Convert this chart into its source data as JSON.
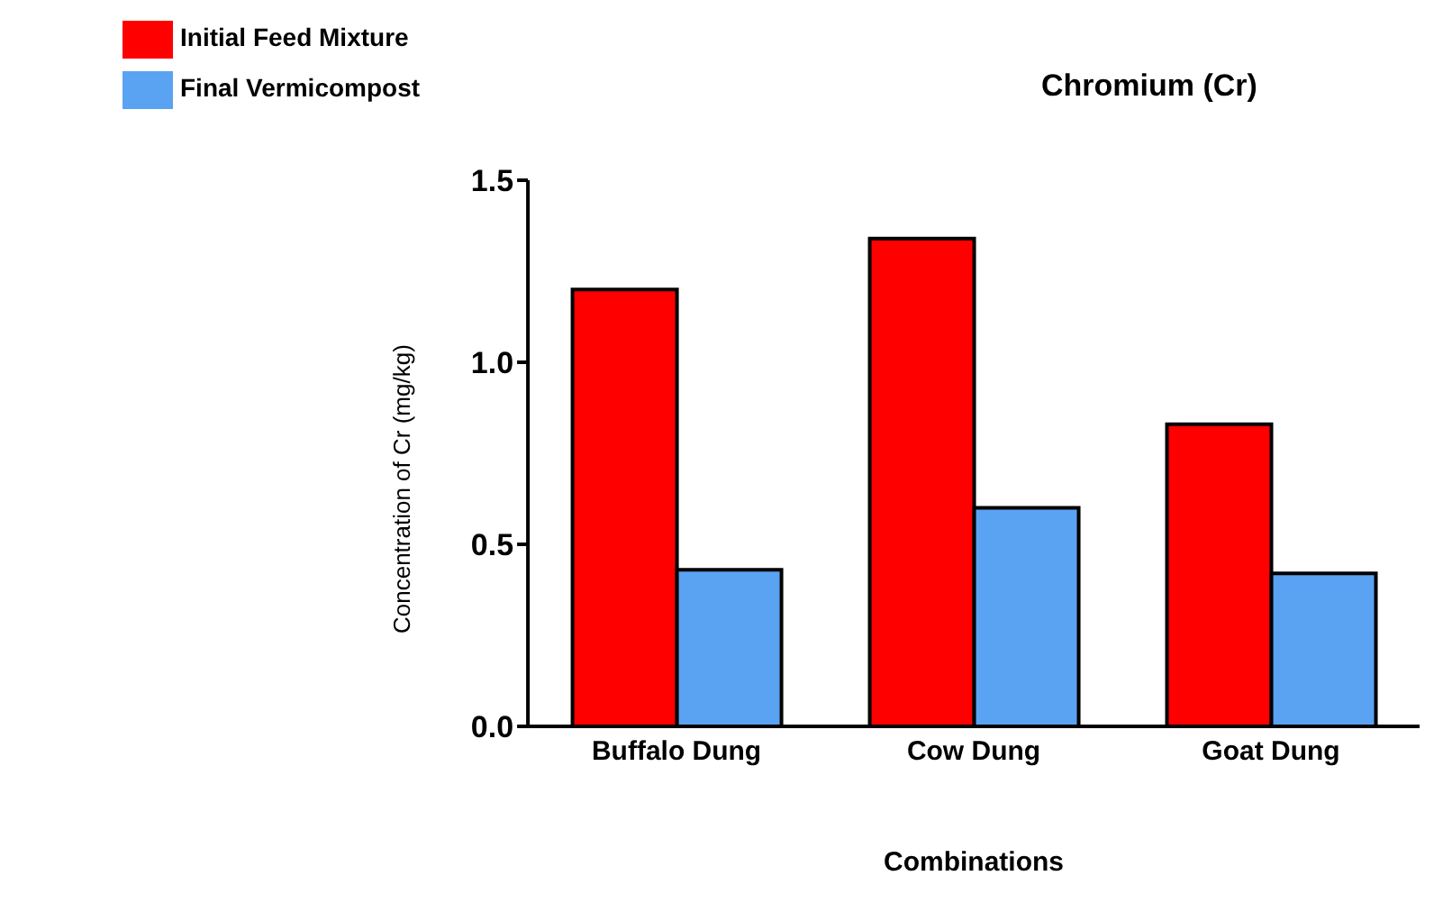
{
  "chart_data": {
    "type": "bar",
    "title": "Chromium (Cr)",
    "xlabel": "Combinations",
    "ylabel": "Concentration of Cr (mg/kg)",
    "categories": [
      "Buffalo Dung",
      "Cow Dung",
      "Goat Dung"
    ],
    "series": [
      {
        "name": "Initial Feed Mixture",
        "color": "#ff0000",
        "values": [
          1.2,
          1.34,
          0.83
        ]
      },
      {
        "name": "Final Vermicompost",
        "color": "#5aa2f2",
        "values": [
          0.43,
          0.6,
          0.42
        ]
      }
    ],
    "ylim": [
      0,
      1.5
    ],
    "yticks": [
      {
        "value": 0,
        "label": "0.0"
      },
      {
        "value": 0.5,
        "label": "0.5"
      },
      {
        "value": 1,
        "label": "1.0"
      },
      {
        "value": 1.5,
        "label": "1.5"
      }
    ],
    "grid": false,
    "legend": "top left"
  }
}
